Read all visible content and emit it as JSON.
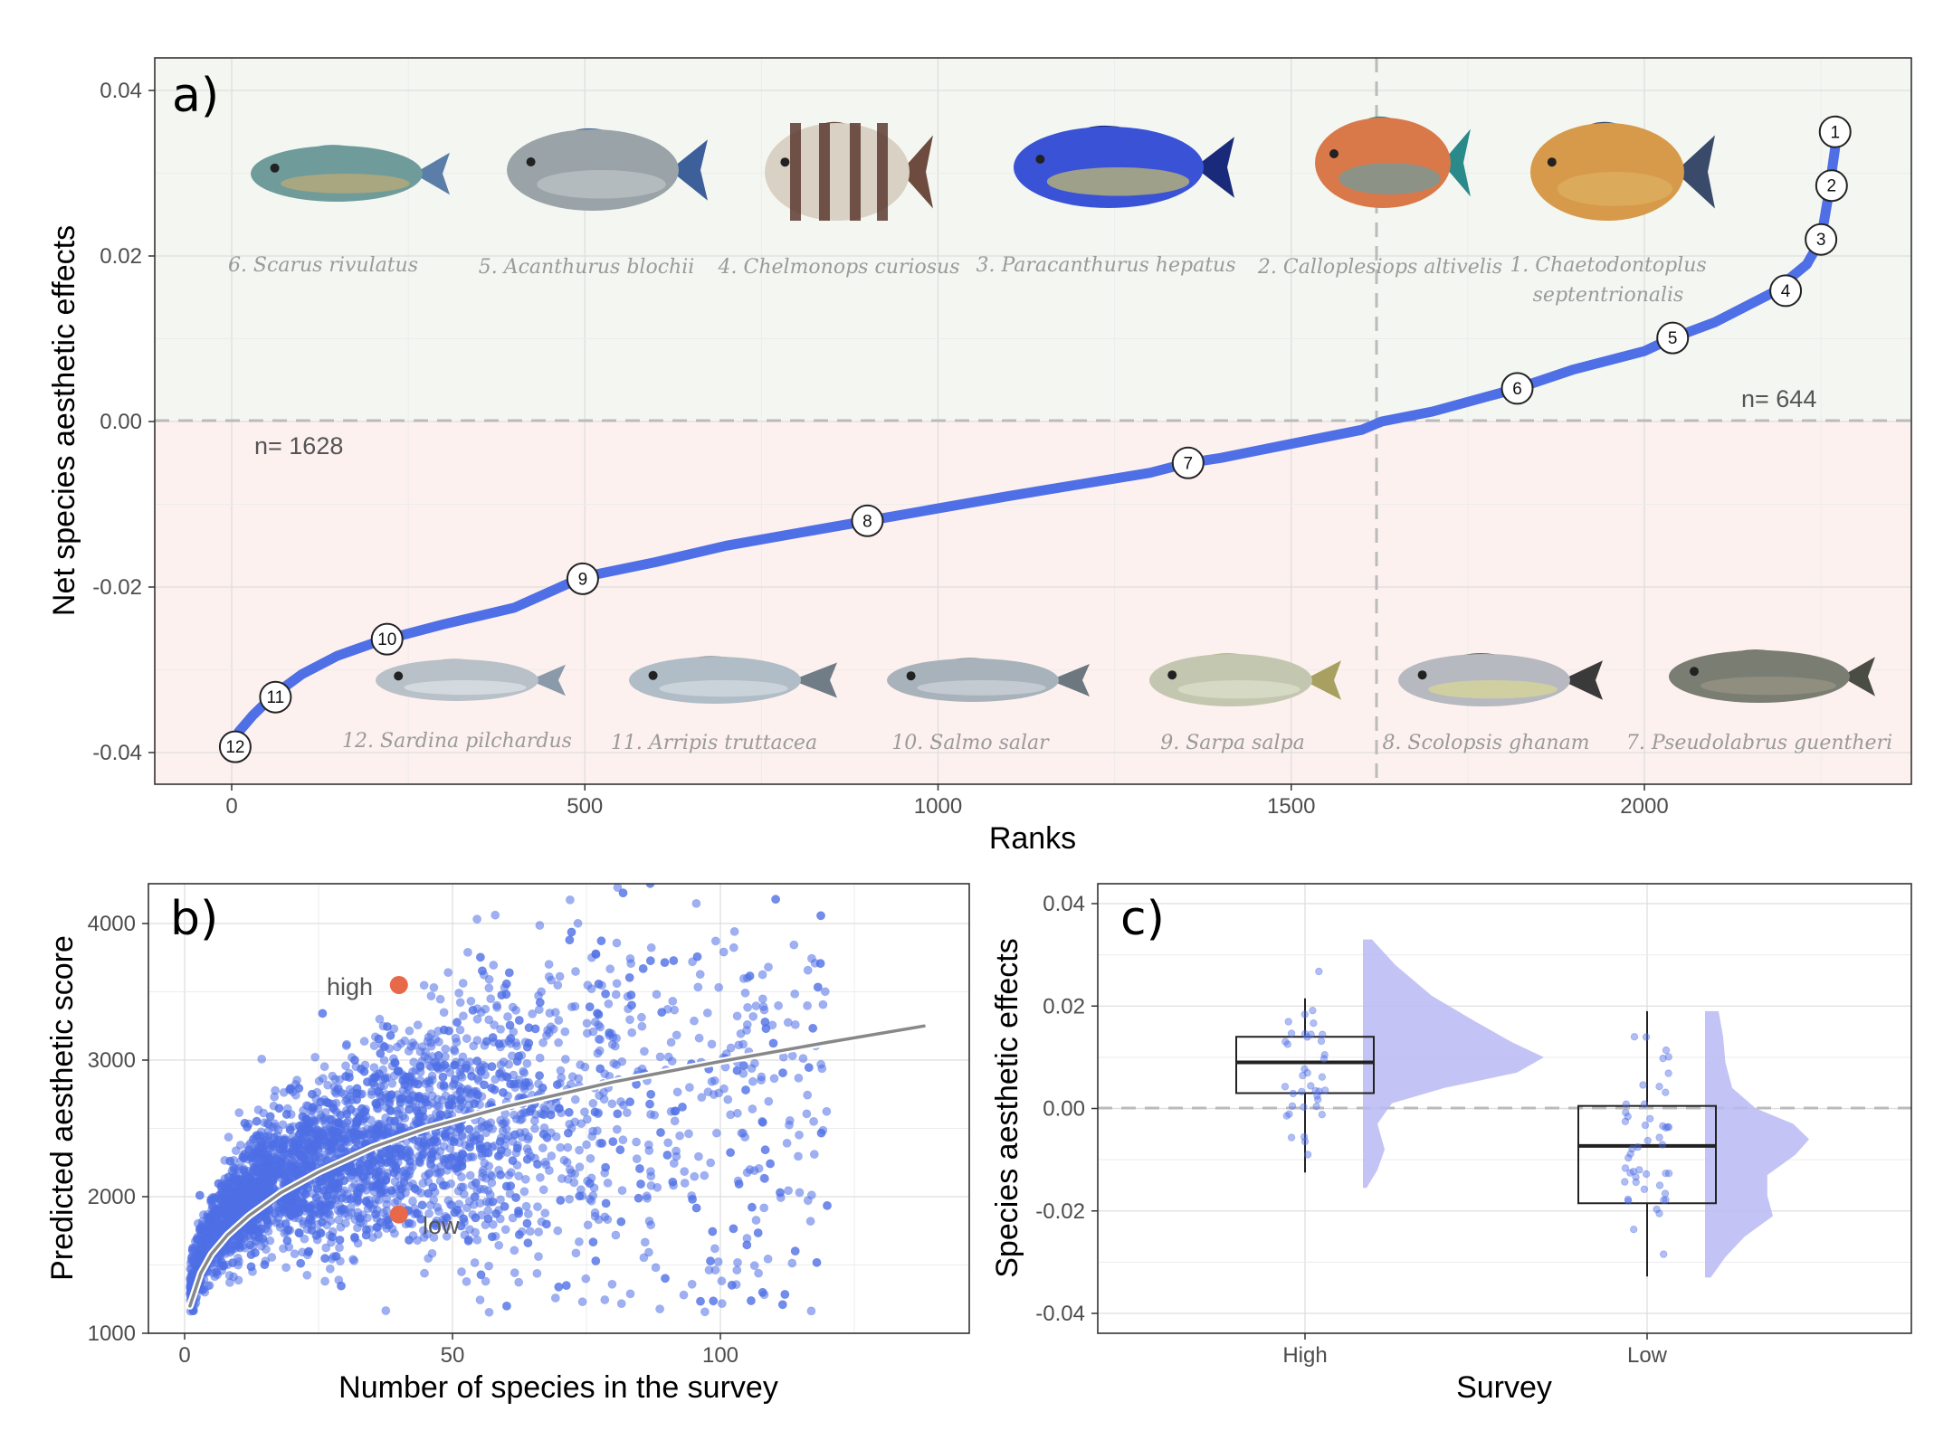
{
  "colors": {
    "series": "#4f6fe6",
    "positive_bg": "#f4f7f1",
    "negative_bg": "#fdf1ef",
    "highlight": "#e8684a",
    "violin": "#b8b8f5",
    "fit_line": "#888888"
  },
  "panel_a": {
    "label": "a)",
    "xlabel": "Ranks",
    "ylabel": "Net species aesthetic effects",
    "n_negative": "n= 1628",
    "n_positive": "n= 644",
    "x_ticks": [
      "0",
      "500",
      "1000",
      "1500",
      "2000"
    ],
    "y_ticks": [
      "-0.04",
      "-0.02",
      "0.00",
      "0.02",
      "0.04"
    ],
    "top_species": [
      {
        "name": "6. Scarus rivulatus",
        "icon": "fish-illustration"
      },
      {
        "name": "5. Acanthurus blochii",
        "icon": "fish-illustration"
      },
      {
        "name": "4. Chelmonops curiosus",
        "icon": "fish-illustration"
      },
      {
        "name": "3. Paracanthurus hepatus",
        "icon": "fish-illustration"
      },
      {
        "name": "2. Calloplesiops altivelis",
        "icon": "fish-illustration"
      },
      {
        "name": "1. Chaetodontoplus",
        "name2": "septentrionalis",
        "icon": "fish-illustration"
      }
    ],
    "bottom_species": [
      {
        "name": "12. Sardina pilchardus",
        "icon": "fish-illustration"
      },
      {
        "name": "11. Arripis truttacea",
        "icon": "fish-illustration"
      },
      {
        "name": "10. Salmo salar",
        "icon": "fish-illustration"
      },
      {
        "name": "9. Sarpa salpa",
        "icon": "fish-illustration"
      },
      {
        "name": "8. Scolopsis ghanam",
        "icon": "fish-illustration"
      },
      {
        "name": "7. Pseudolabrus guentheri",
        "icon": "fish-illustration"
      }
    ]
  },
  "panel_b": {
    "label": "b)",
    "xlabel": "Number of species in the survey",
    "ylabel": "Predicted aesthetic score",
    "x_ticks": [
      "0",
      "50",
      "100"
    ],
    "y_ticks": [
      "1000",
      "2000",
      "3000",
      "4000"
    ],
    "high_label": "high",
    "low_label": "low"
  },
  "panel_c": {
    "label": "c)",
    "xlabel": "Survey",
    "ylabel": "Species aesthetic effects",
    "categories": [
      "High",
      "Low"
    ],
    "y_ticks": [
      "-0.04",
      "-0.02",
      "0.00",
      "0.02",
      "0.04"
    ]
  },
  "chart_data": [
    {
      "type": "line",
      "panel": "a",
      "xlabel": "Ranks",
      "ylabel": "Net species aesthetic effects",
      "xlim": [
        -110,
        2400
      ],
      "ylim": [
        -0.0438,
        0.0438
      ],
      "hline": 0.0,
      "vline": 1628,
      "grid": true,
      "curve": {
        "x": [
          0,
          10,
          30,
          60,
          100,
          150,
          200,
          220,
          300,
          400,
          497,
          600,
          700,
          800,
          900,
          1000,
          1100,
          1200,
          1300,
          1354,
          1400,
          1500,
          1600,
          1628,
          1700,
          1820,
          1900,
          2000,
          2040,
          2100,
          2180,
          2230,
          2250,
          2260,
          2270
        ],
        "y": [
          -0.0393,
          -0.0375,
          -0.0355,
          -0.033,
          -0.0305,
          -0.0283,
          -0.0268,
          -0.0263,
          -0.0245,
          -0.0225,
          -0.0188,
          -0.017,
          -0.015,
          -0.0135,
          -0.012,
          -0.0105,
          -0.009,
          -0.0076,
          -0.0062,
          -0.005,
          -0.0044,
          -0.0027,
          -0.001,
          0.0,
          0.0012,
          0.004,
          0.0063,
          0.0085,
          0.0101,
          0.012,
          0.0155,
          0.019,
          0.022,
          0.027,
          0.033
        ]
      },
      "ranked_species": [
        {
          "rank_label": "1",
          "x": 2270,
          "y": 0.035
        },
        {
          "rank_label": "2",
          "x": 2265,
          "y": 0.0285
        },
        {
          "rank_label": "3",
          "x": 2250,
          "y": 0.022
        },
        {
          "rank_label": "4",
          "x": 2200,
          "y": 0.0158
        },
        {
          "rank_label": "5",
          "x": 2040,
          "y": 0.0101
        },
        {
          "rank_label": "6",
          "x": 1820,
          "y": 0.004
        },
        {
          "rank_label": "7",
          "x": 1354,
          "y": -0.005
        },
        {
          "rank_label": "8",
          "x": 900,
          "y": -0.012
        },
        {
          "rank_label": "9",
          "x": 497,
          "y": -0.019
        },
        {
          "rank_label": "10",
          "x": 220,
          "y": -0.0263
        },
        {
          "rank_label": "11",
          "x": 62,
          "y": -0.0333
        },
        {
          "rank_label": "12",
          "x": 5,
          "y": -0.0393
        }
      ]
    },
    {
      "type": "scatter",
      "panel": "b",
      "xlabel": "Number of species in the survey",
      "ylabel": "Predicted aesthetic score",
      "xlim": [
        -3,
        146
      ],
      "ylim": [
        1000,
        4300
      ],
      "grid": true,
      "point_count_approx": 4000,
      "fit_curve": {
        "x": [
          1,
          3,
          5,
          8,
          12,
          18,
          25,
          35,
          45,
          60,
          80,
          100,
          120,
          138
        ],
        "y": [
          1200,
          1440,
          1580,
          1720,
          1860,
          2030,
          2180,
          2360,
          2500,
          2660,
          2840,
          2990,
          3130,
          3250
        ]
      },
      "highlights": [
        {
          "label": "high",
          "x": 40,
          "y": 3550
        },
        {
          "label": "low",
          "x": 40,
          "y": 1870
        }
      ]
    },
    {
      "type": "box",
      "panel": "c",
      "xlabel": "Survey",
      "ylabel": "Species aesthetic effects",
      "ylim": [
        -0.0438,
        0.0438
      ],
      "hline": 0.0,
      "grid": true,
      "categories": [
        "High",
        "Low"
      ],
      "boxes": [
        {
          "name": "High",
          "whisker_low": -0.0125,
          "q1": 0.003,
          "median": 0.009,
          "q3": 0.014,
          "whisker_high": 0.0215
        },
        {
          "name": "Low",
          "whisker_low": -0.0328,
          "q1": -0.0185,
          "median": -0.0073,
          "q3": 0.0005,
          "whisker_high": 0.019
        }
      ]
    }
  ]
}
